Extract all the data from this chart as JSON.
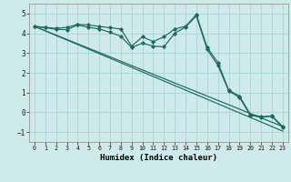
{
  "xlabel": "Humidex (Indice chaleur)",
  "xlim": [
    -0.5,
    23.5
  ],
  "ylim": [
    -1.5,
    5.5
  ],
  "bg_color": "#ceeaea",
  "line_color": "#1e6b5e",
  "grid_color": "#a8d4d4",
  "xticks": [
    0,
    1,
    2,
    3,
    4,
    5,
    6,
    7,
    8,
    9,
    10,
    11,
    12,
    13,
    14,
    15,
    16,
    17,
    18,
    19,
    20,
    21,
    22,
    23
  ],
  "yticks": [
    -1,
    0,
    1,
    2,
    3,
    4,
    5
  ],
  "line1_x": [
    0,
    1,
    2,
    3,
    4,
    5,
    6,
    7,
    8,
    9,
    10,
    11,
    12,
    13,
    14,
    15,
    16,
    17,
    18,
    19,
    20,
    21,
    22,
    23
  ],
  "line1_y": [
    4.35,
    4.3,
    4.25,
    4.3,
    4.45,
    4.42,
    4.35,
    4.28,
    4.22,
    3.35,
    3.82,
    3.58,
    3.82,
    4.22,
    4.35,
    4.95,
    3.28,
    2.52,
    1.12,
    0.82,
    -0.1,
    -0.22,
    -0.18,
    -0.72
  ],
  "line2_x": [
    0,
    1,
    2,
    3,
    4,
    5,
    6,
    7,
    8,
    9,
    10,
    11,
    12,
    13,
    14,
    15,
    16,
    17,
    18,
    19,
    20,
    21,
    22,
    23
  ],
  "line2_y": [
    4.35,
    4.28,
    4.2,
    4.18,
    4.42,
    4.3,
    4.22,
    4.05,
    3.85,
    3.28,
    3.5,
    3.35,
    3.32,
    4.0,
    4.32,
    4.88,
    3.18,
    2.38,
    1.08,
    0.75,
    -0.15,
    -0.25,
    -0.2,
    -0.78
  ],
  "line3_x": [
    0,
    23
  ],
  "line3_y": [
    4.35,
    -0.72
  ],
  "line4_x": [
    0,
    23
  ],
  "line4_y": [
    4.35,
    -0.95
  ]
}
